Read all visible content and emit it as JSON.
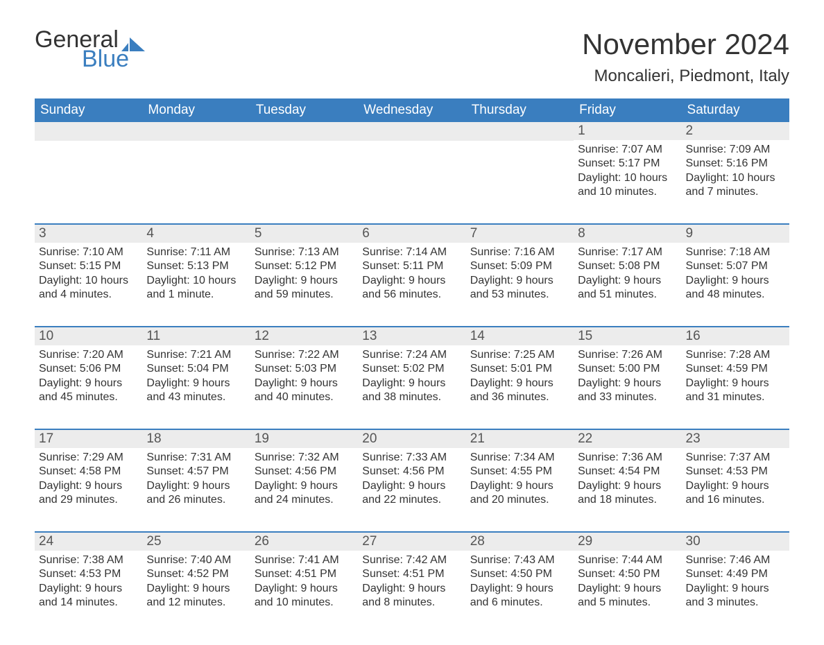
{
  "brand": {
    "word1": "General",
    "word2": "Blue"
  },
  "title": "November 2024",
  "location": "Moncalieri, Piedmont, Italy",
  "colors": {
    "brand_blue": "#3a7ebf",
    "header_text": "#ffffff",
    "daynum_bg": "#ececec",
    "text": "#333333",
    "background": "#ffffff"
  },
  "fonts": {
    "title_size_pt": 32,
    "location_size_pt": 18,
    "dow_size_pt": 14,
    "daynum_size_pt": 14,
    "body_size_pt": 12
  },
  "dow": [
    "Sunday",
    "Monday",
    "Tuesday",
    "Wednesday",
    "Thursday",
    "Friday",
    "Saturday"
  ],
  "weeks": [
    [
      null,
      null,
      null,
      null,
      null,
      {
        "n": "1",
        "sunrise": "Sunrise: 7:07 AM",
        "sunset": "Sunset: 5:17 PM",
        "daylight": "Daylight: 10 hours and 10 minutes."
      },
      {
        "n": "2",
        "sunrise": "Sunrise: 7:09 AM",
        "sunset": "Sunset: 5:16 PM",
        "daylight": "Daylight: 10 hours and 7 minutes."
      }
    ],
    [
      {
        "n": "3",
        "sunrise": "Sunrise: 7:10 AM",
        "sunset": "Sunset: 5:15 PM",
        "daylight": "Daylight: 10 hours and 4 minutes."
      },
      {
        "n": "4",
        "sunrise": "Sunrise: 7:11 AM",
        "sunset": "Sunset: 5:13 PM",
        "daylight": "Daylight: 10 hours and 1 minute."
      },
      {
        "n": "5",
        "sunrise": "Sunrise: 7:13 AM",
        "sunset": "Sunset: 5:12 PM",
        "daylight": "Daylight: 9 hours and 59 minutes."
      },
      {
        "n": "6",
        "sunrise": "Sunrise: 7:14 AM",
        "sunset": "Sunset: 5:11 PM",
        "daylight": "Daylight: 9 hours and 56 minutes."
      },
      {
        "n": "7",
        "sunrise": "Sunrise: 7:16 AM",
        "sunset": "Sunset: 5:09 PM",
        "daylight": "Daylight: 9 hours and 53 minutes."
      },
      {
        "n": "8",
        "sunrise": "Sunrise: 7:17 AM",
        "sunset": "Sunset: 5:08 PM",
        "daylight": "Daylight: 9 hours and 51 minutes."
      },
      {
        "n": "9",
        "sunrise": "Sunrise: 7:18 AM",
        "sunset": "Sunset: 5:07 PM",
        "daylight": "Daylight: 9 hours and 48 minutes."
      }
    ],
    [
      {
        "n": "10",
        "sunrise": "Sunrise: 7:20 AM",
        "sunset": "Sunset: 5:06 PM",
        "daylight": "Daylight: 9 hours and 45 minutes."
      },
      {
        "n": "11",
        "sunrise": "Sunrise: 7:21 AM",
        "sunset": "Sunset: 5:04 PM",
        "daylight": "Daylight: 9 hours and 43 minutes."
      },
      {
        "n": "12",
        "sunrise": "Sunrise: 7:22 AM",
        "sunset": "Sunset: 5:03 PM",
        "daylight": "Daylight: 9 hours and 40 minutes."
      },
      {
        "n": "13",
        "sunrise": "Sunrise: 7:24 AM",
        "sunset": "Sunset: 5:02 PM",
        "daylight": "Daylight: 9 hours and 38 minutes."
      },
      {
        "n": "14",
        "sunrise": "Sunrise: 7:25 AM",
        "sunset": "Sunset: 5:01 PM",
        "daylight": "Daylight: 9 hours and 36 minutes."
      },
      {
        "n": "15",
        "sunrise": "Sunrise: 7:26 AM",
        "sunset": "Sunset: 5:00 PM",
        "daylight": "Daylight: 9 hours and 33 minutes."
      },
      {
        "n": "16",
        "sunrise": "Sunrise: 7:28 AM",
        "sunset": "Sunset: 4:59 PM",
        "daylight": "Daylight: 9 hours and 31 minutes."
      }
    ],
    [
      {
        "n": "17",
        "sunrise": "Sunrise: 7:29 AM",
        "sunset": "Sunset: 4:58 PM",
        "daylight": "Daylight: 9 hours and 29 minutes."
      },
      {
        "n": "18",
        "sunrise": "Sunrise: 7:31 AM",
        "sunset": "Sunset: 4:57 PM",
        "daylight": "Daylight: 9 hours and 26 minutes."
      },
      {
        "n": "19",
        "sunrise": "Sunrise: 7:32 AM",
        "sunset": "Sunset: 4:56 PM",
        "daylight": "Daylight: 9 hours and 24 minutes."
      },
      {
        "n": "20",
        "sunrise": "Sunrise: 7:33 AM",
        "sunset": "Sunset: 4:56 PM",
        "daylight": "Daylight: 9 hours and 22 minutes."
      },
      {
        "n": "21",
        "sunrise": "Sunrise: 7:34 AM",
        "sunset": "Sunset: 4:55 PM",
        "daylight": "Daylight: 9 hours and 20 minutes."
      },
      {
        "n": "22",
        "sunrise": "Sunrise: 7:36 AM",
        "sunset": "Sunset: 4:54 PM",
        "daylight": "Daylight: 9 hours and 18 minutes."
      },
      {
        "n": "23",
        "sunrise": "Sunrise: 7:37 AM",
        "sunset": "Sunset: 4:53 PM",
        "daylight": "Daylight: 9 hours and 16 minutes."
      }
    ],
    [
      {
        "n": "24",
        "sunrise": "Sunrise: 7:38 AM",
        "sunset": "Sunset: 4:53 PM",
        "daylight": "Daylight: 9 hours and 14 minutes."
      },
      {
        "n": "25",
        "sunrise": "Sunrise: 7:40 AM",
        "sunset": "Sunset: 4:52 PM",
        "daylight": "Daylight: 9 hours and 12 minutes."
      },
      {
        "n": "26",
        "sunrise": "Sunrise: 7:41 AM",
        "sunset": "Sunset: 4:51 PM",
        "daylight": "Daylight: 9 hours and 10 minutes."
      },
      {
        "n": "27",
        "sunrise": "Sunrise: 7:42 AM",
        "sunset": "Sunset: 4:51 PM",
        "daylight": "Daylight: 9 hours and 8 minutes."
      },
      {
        "n": "28",
        "sunrise": "Sunrise: 7:43 AM",
        "sunset": "Sunset: 4:50 PM",
        "daylight": "Daylight: 9 hours and 6 minutes."
      },
      {
        "n": "29",
        "sunrise": "Sunrise: 7:44 AM",
        "sunset": "Sunset: 4:50 PM",
        "daylight": "Daylight: 9 hours and 5 minutes."
      },
      {
        "n": "30",
        "sunrise": "Sunrise: 7:46 AM",
        "sunset": "Sunset: 4:49 PM",
        "daylight": "Daylight: 9 hours and 3 minutes."
      }
    ]
  ]
}
